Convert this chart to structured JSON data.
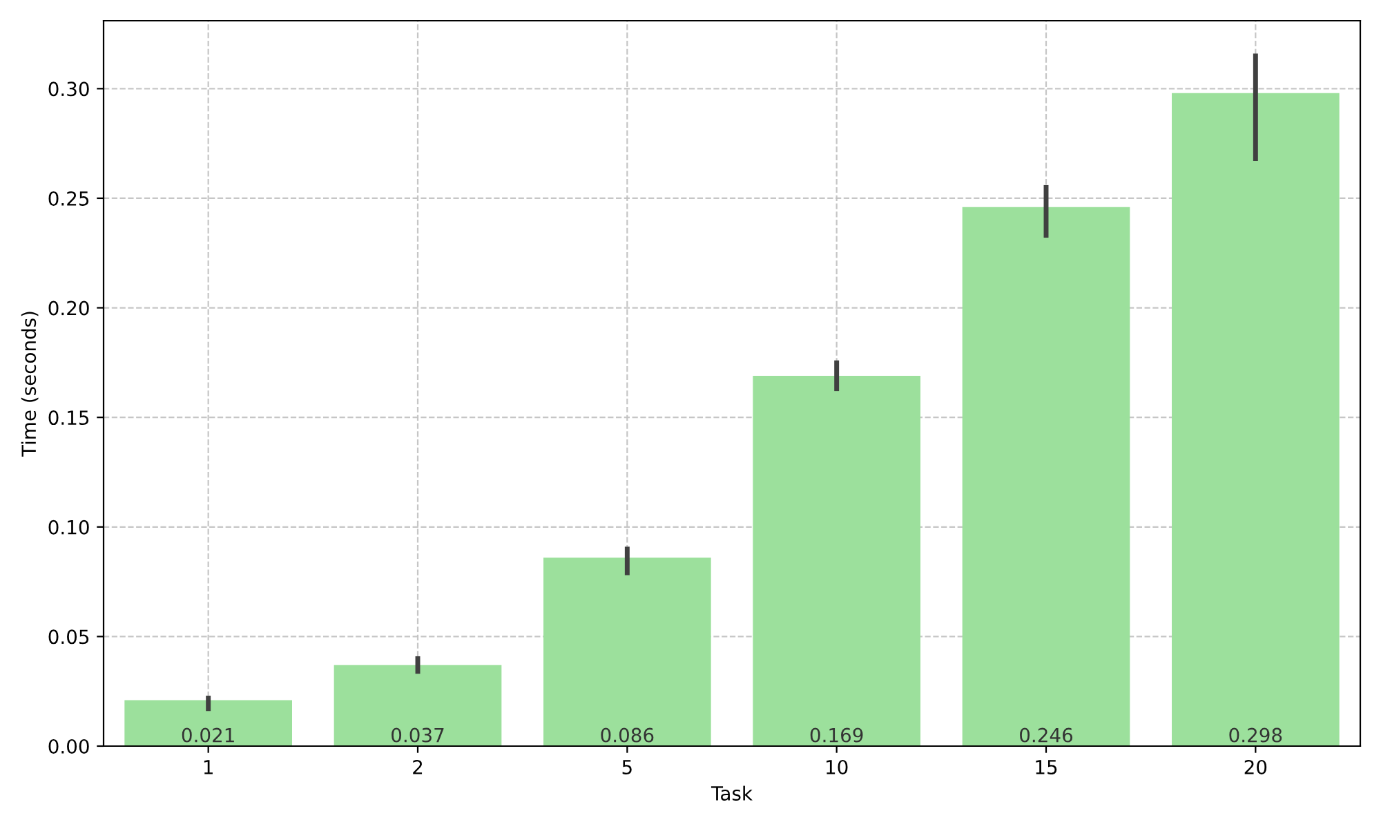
{
  "chart_data": {
    "type": "bar",
    "xlabel": "Task",
    "ylabel": "Time (seconds)",
    "categories": [
      "1",
      "2",
      "5",
      "10",
      "15",
      "20"
    ],
    "values": [
      0.021,
      0.037,
      0.086,
      0.169,
      0.246,
      0.298
    ],
    "errors": [
      [
        0.016,
        0.023
      ],
      [
        0.033,
        0.041
      ],
      [
        0.078,
        0.091
      ],
      [
        0.162,
        0.176
      ],
      [
        0.232,
        0.256
      ],
      [
        0.267,
        0.316
      ]
    ],
    "color": "#9ce09c",
    "ylim": [
      0,
      0.331
    ],
    "yticks": [
      {
        "value": 0,
        "label": "0.00"
      },
      {
        "value": 0.05,
        "label": "0.05"
      },
      {
        "value": 0.1,
        "label": "0.10"
      },
      {
        "value": 0.15,
        "label": "0.15"
      },
      {
        "value": 0.2,
        "label": "0.20"
      },
      {
        "value": 0.25,
        "label": "0.25"
      },
      {
        "value": 0.3,
        "label": "0.30"
      }
    ],
    "grid": true,
    "data_labels": true
  }
}
